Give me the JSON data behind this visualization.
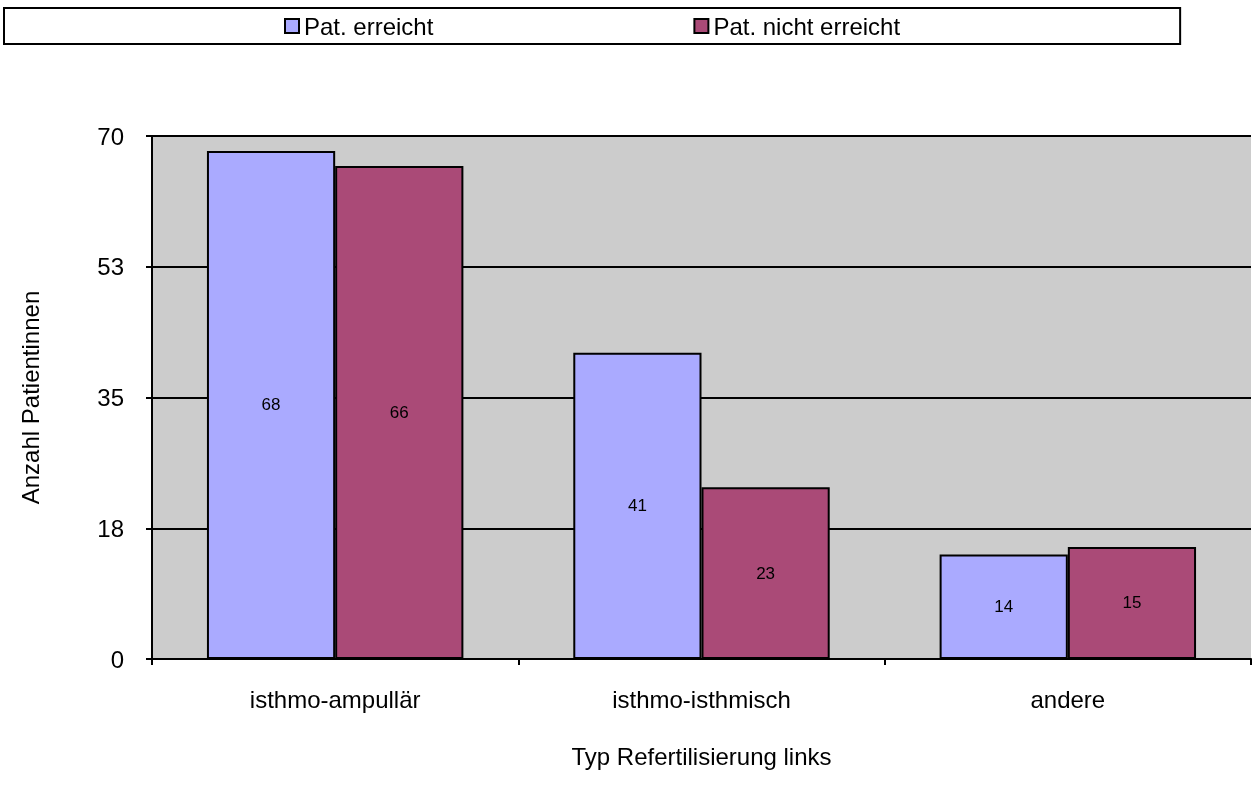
{
  "chart_data": {
    "type": "bar",
    "xlabel": "Typ Refertilisierung links",
    "ylabel": "Anzahl Patientinnen",
    "categories": [
      "isthmo-ampullär",
      "isthmo-isthmisch",
      "andere"
    ],
    "series": [
      {
        "name": "Pat. erreicht",
        "color": "#aaaaff",
        "values": [
          68,
          41,
          14
        ]
      },
      {
        "name": "Pat. nicht erreicht",
        "color": "#aa4a77",
        "values": [
          66,
          23,
          15
        ]
      }
    ],
    "ylim": [
      0,
      70
    ],
    "yticks": [
      0,
      {
        "value": 17.5,
        "label": "18"
      },
      35,
      {
        "value": 52.5,
        "label": "53"
      },
      70
    ],
    "grid": "y",
    "legend": "top",
    "data_labels": true
  }
}
